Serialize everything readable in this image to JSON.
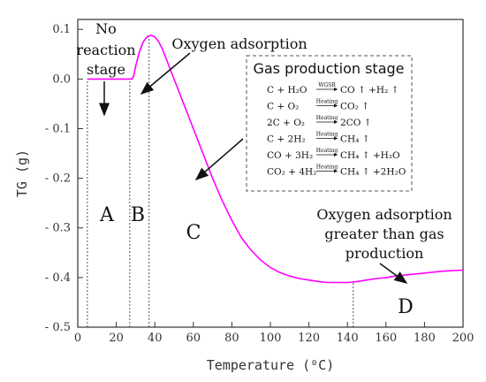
{
  "chart_data": {
    "type": "line",
    "title": "",
    "xlabel": "Temperature (⁰C)",
    "ylabel": "TG (g)",
    "xlim": [
      0,
      200
    ],
    "ylim": [
      -0.5,
      0.12
    ],
    "x_ticks": [
      "0",
      "20",
      "40",
      "60",
      "80",
      "100",
      "120",
      "140",
      "160",
      "180",
      "200"
    ],
    "y_ticks": [
      "0.1",
      "0.0",
      "- 0.1",
      "- 0.2",
      "- 0.3",
      "- 0.4",
      "- 0.5"
    ],
    "x_tick_values": [
      0,
      20,
      40,
      60,
      80,
      100,
      120,
      140,
      160,
      180,
      200
    ],
    "y_tick_values": [
      0.1,
      0.0,
      -0.1,
      -0.2,
      -0.3,
      -0.4,
      -0.5
    ],
    "grid": false,
    "series": [
      {
        "color": "#ff00ff",
        "x": [
          5,
          10,
          15,
          20,
          25,
          28,
          29,
          30,
          32,
          34,
          36,
          38,
          40,
          42,
          44,
          46,
          48,
          50,
          55,
          60,
          65,
          70,
          75,
          80,
          85,
          90,
          95,
          100,
          105,
          110,
          115,
          120,
          125,
          130,
          135,
          140,
          145,
          150,
          155,
          160,
          165,
          170,
          175,
          180,
          185,
          190,
          195,
          200
        ],
        "y": [
          0.0,
          0.0,
          0.0,
          0.0,
          0.0,
          0.0,
          0.005,
          0.025,
          0.055,
          0.075,
          0.085,
          0.088,
          0.085,
          0.075,
          0.06,
          0.04,
          0.02,
          0.0,
          -0.05,
          -0.1,
          -0.15,
          -0.2,
          -0.245,
          -0.285,
          -0.32,
          -0.345,
          -0.365,
          -0.38,
          -0.39,
          -0.397,
          -0.402,
          -0.405,
          -0.408,
          -0.41,
          -0.41,
          -0.41,
          -0.408,
          -0.405,
          -0.402,
          -0.4,
          -0.397,
          -0.395,
          -0.393,
          -0.391,
          -0.389,
          -0.387,
          -0.386,
          -0.385
        ]
      }
    ],
    "dotted_markers_x": [
      5,
      27,
      37,
      143
    ],
    "annotations": {
      "no_reaction": [
        "No",
        "reaction",
        "stage"
      ],
      "oxygen_adsorption": "Oxygen adsorption",
      "oxygen_greater": [
        "Oxygen adsorption",
        "greater than gas",
        "production"
      ],
      "gas_box_title": "Gas production stage",
      "stage_a": "A",
      "stage_b": "B",
      "stage_c": "C",
      "stage_d": "D"
    },
    "equations": [
      {
        "left": "C + H₂O",
        "cond": "WGSR",
        "right": "CO ↑ +H₂ ↑"
      },
      {
        "left": "C + O₂",
        "cond": "Heating",
        "right": "CO₂ ↑"
      },
      {
        "left": "2C + O₂",
        "cond": "Heating",
        "right": "2CO ↑"
      },
      {
        "left": "C + 2H₂",
        "cond": "Heating",
        "right": "CH₄ ↑"
      },
      {
        "left": "CO + 3H₂",
        "cond": "Heating",
        "right": "CH₄ ↑ +H₂O"
      },
      {
        "left": "CO₂ + 4H₂",
        "cond": "Heating",
        "right": "CH₄ ↑ +2H₂O"
      }
    ]
  }
}
